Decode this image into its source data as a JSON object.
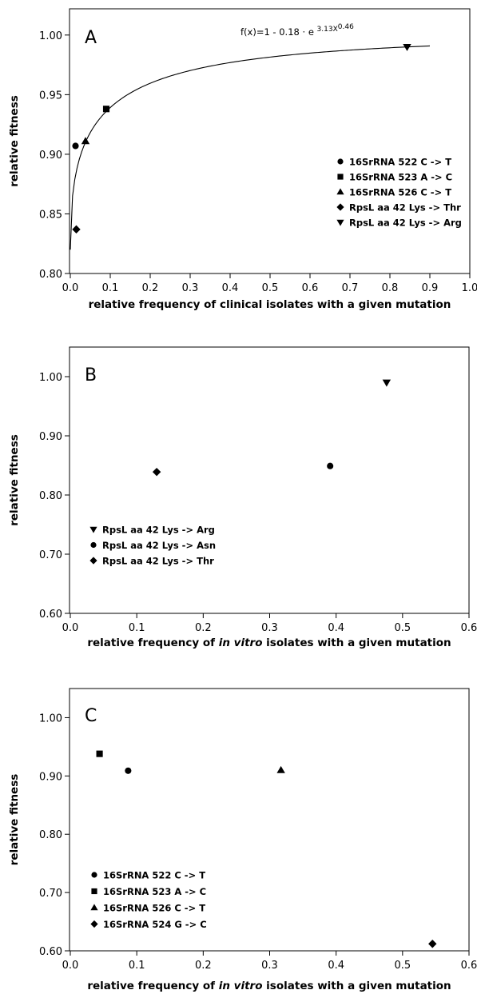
{
  "chart_data": [
    {
      "type": "scatter",
      "panel_letter": "A",
      "xlabel": "relative frequency of clinical isolates with a given mutation",
      "ylabel": "relative fitness",
      "xlim": [
        0.0,
        1.0
      ],
      "ylim": [
        0.8,
        1.02
      ],
      "xticks": [
        "0.0",
        "0.1",
        "0.2",
        "0.3",
        "0.4",
        "0.5",
        "0.6",
        "0.7",
        "0.8",
        "0.9",
        "1.0"
      ],
      "yticks": [
        "0.80",
        "0.85",
        "0.90",
        "0.95",
        "1.00"
      ],
      "grid": false,
      "legend_position": "bottom-right",
      "fit_equation": {
        "base": "f(x)=1 - 0.18 · e",
        "exponent": "3.13X",
        "exponent_power": "0.46"
      },
      "fit_curve": {
        "a": 1,
        "b": 0.18,
        "c": -3.13,
        "p": 0.46,
        "x_range": [
          0.0,
          0.9
        ]
      },
      "series": [
        {
          "name": "16SrRNA 522 C -> T",
          "marker": "circle",
          "points": [
            [
              0.013,
              0.907
            ]
          ]
        },
        {
          "name": "16SrRNA 523 A -> C",
          "marker": "square",
          "points": [
            [
              0.09,
              0.938
            ]
          ]
        },
        {
          "name": "16SrRNA 526 C -> T",
          "marker": "triangle-up",
          "points": [
            [
              0.038,
              0.911
            ]
          ]
        },
        {
          "name": "RpsL aa 42 Lys -> Thr",
          "marker": "diamond",
          "points": [
            [
              0.015,
              0.837
            ]
          ]
        },
        {
          "name": "RpsL aa 42 Lys -> Arg",
          "marker": "triangle-down",
          "points": [
            [
              0.843,
              0.99
            ]
          ]
        }
      ]
    },
    {
      "type": "scatter",
      "panel_letter": "B",
      "xlabel_parts": [
        "relative frequency of ",
        "in vitro",
        " isolates with a given mutation"
      ],
      "ylabel": "relative fitness",
      "xlim": [
        0.0,
        0.6
      ],
      "ylim": [
        0.6,
        1.05
      ],
      "xticks": [
        "0.0",
        "0.1",
        "0.2",
        "0.3",
        "0.4",
        "0.5",
        "0.6"
      ],
      "yticks": [
        "0.60",
        "0.70",
        "0.80",
        "0.90",
        "1.00"
      ],
      "grid": false,
      "legend_position": "bottom-left",
      "series": [
        {
          "name": "RpsL aa 42 Lys -> Arg",
          "marker": "triangle-down",
          "points": [
            [
              0.476,
              0.99
            ]
          ]
        },
        {
          "name": "RpsL aa 42 Lys -> Asn",
          "marker": "circle",
          "points": [
            [
              0.391,
              0.849
            ]
          ]
        },
        {
          "name": "RpsL aa 42 Lys -> Thr",
          "marker": "diamond",
          "points": [
            [
              0.13,
              0.839
            ]
          ]
        }
      ]
    },
    {
      "type": "scatter",
      "panel_letter": "C",
      "xlabel_parts": [
        "relative frequency of ",
        "in vitro",
        " isolates with a given mutation"
      ],
      "ylabel": "relative fitness",
      "xlim": [
        0.0,
        0.6
      ],
      "ylim": [
        0.6,
        1.05
      ],
      "xticks": [
        "0.0",
        "0.1",
        "0.2",
        "0.3",
        "0.4",
        "0.5",
        "0.6"
      ],
      "yticks": [
        "0.60",
        "0.70",
        "0.80",
        "0.90",
        "1.00"
      ],
      "grid": false,
      "legend_position": "bottom-left",
      "series": [
        {
          "name": "16SrRNA 522 C -> T",
          "marker": "circle",
          "points": [
            [
              0.087,
              0.909
            ]
          ]
        },
        {
          "name": "16SrRNA 523 A -> C",
          "marker": "square",
          "points": [
            [
              0.044,
              0.938
            ]
          ]
        },
        {
          "name": "16SrRNA 526 C -> T",
          "marker": "triangle-up",
          "points": [
            [
              0.317,
              0.91
            ]
          ]
        },
        {
          "name": "16SrRNA 524 G -> C",
          "marker": "diamond",
          "points": [
            [
              0.545,
              0.612
            ]
          ]
        }
      ]
    }
  ]
}
